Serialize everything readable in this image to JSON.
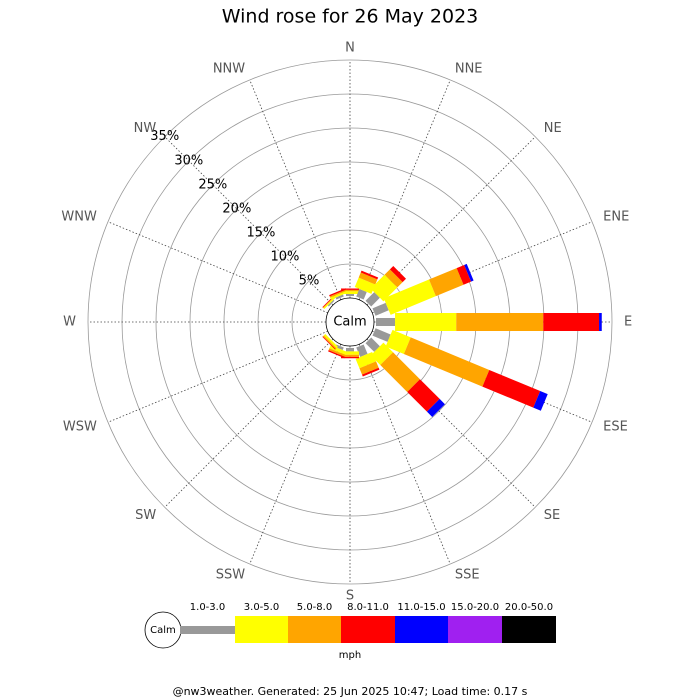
{
  "chart_data": {
    "type": "wind_rose",
    "title": "Wind rose for 26 May 2023",
    "calm_label": "Calm",
    "unit": "mph",
    "footer": "@nw3weather. Generated: 25 Jun 2025 10:47; Load time: 0.17 s",
    "categories": [
      "N",
      "NNE",
      "NE",
      "ENE",
      "E",
      "ESE",
      "SE",
      "SSE",
      "S",
      "SSW",
      "SW",
      "WSW",
      "W",
      "WNW",
      "NW",
      "NNW"
    ],
    "ylim": [
      0,
      35
    ],
    "yticks": [
      {
        "value": 5,
        "label": "5%"
      },
      {
        "value": 10,
        "label": "10%"
      },
      {
        "value": 15,
        "label": "15%"
      },
      {
        "value": 20,
        "label": "20%"
      },
      {
        "value": 25,
        "label": "25%"
      },
      {
        "value": 30,
        "label": "30%"
      },
      {
        "value": 35,
        "label": "35%"
      }
    ],
    "series": [
      {
        "name": "1.0-3.0",
        "color": "#999999",
        "values": [
          0.3,
          1.2,
          1.8,
          2.1,
          2.8,
          2.4,
          1.8,
          1.5,
          0.5,
          0.4,
          0,
          0,
          0,
          0,
          0.2,
          0.3
        ]
      },
      {
        "name": "3.0-5.0",
        "color": "#ffff00",
        "values": [
          0.4,
          1.5,
          2.9,
          7.2,
          9.0,
          2.9,
          2.0,
          1.5,
          0.5,
          0.5,
          0.3,
          0,
          0,
          0,
          0.2,
          0.3
        ]
      },
      {
        "name": "5.0-8.0",
        "color": "#ffa500",
        "values": [
          0.2,
          0.8,
          1.1,
          4.4,
          12.8,
          12.5,
          5.6,
          1.0,
          0.3,
          0.3,
          0.2,
          0,
          0,
          0,
          0.1,
          0.2
        ]
      },
      {
        "name": "8.0-11.0",
        "color": "#ff0000",
        "values": [
          0.2,
          0.3,
          0.7,
          1.2,
          8.2,
          8.1,
          4.1,
          0.3,
          0.2,
          0.2,
          0.1,
          0,
          0,
          0,
          0.1,
          0.2
        ]
      },
      {
        "name": "11.0-15.0",
        "color": "#0000ff",
        "values": [
          0,
          0,
          0,
          0.4,
          0.4,
          1.2,
          1.1,
          0,
          0,
          0,
          0,
          0,
          0,
          0,
          0,
          0
        ]
      },
      {
        "name": "15.0-20.0",
        "color": "#a020f0",
        "values": [
          0,
          0,
          0,
          0,
          0,
          0,
          0,
          0,
          0,
          0,
          0,
          0,
          0,
          0,
          0,
          0
        ]
      },
      {
        "name": "20.0-50.0",
        "color": "#000000",
        "values": [
          0,
          0,
          0,
          0,
          0,
          0,
          0,
          0,
          0,
          0,
          0,
          0,
          0,
          0,
          0,
          0
        ]
      }
    ]
  }
}
